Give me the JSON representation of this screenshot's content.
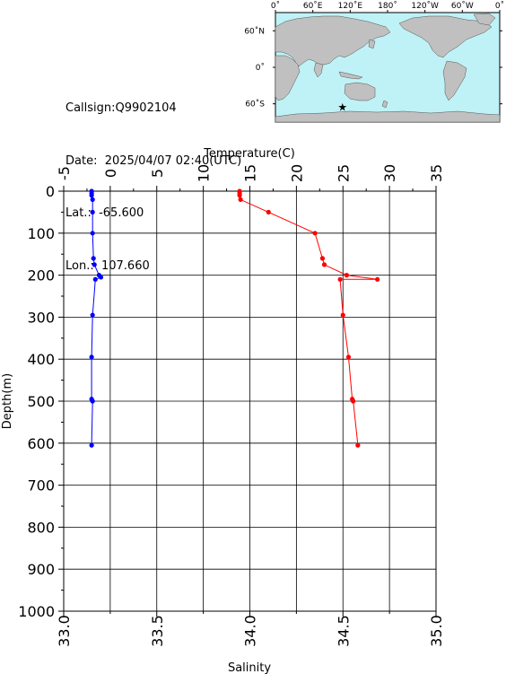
{
  "station": {
    "callsign": "Callsign:Q9902104",
    "date": "Date:  2025/04/07 02:40(UTC)",
    "lat": "Lat.:  -65.600",
    "lon": "Lon.:  107.660"
  },
  "map": {
    "lon_labels": [
      "0˚",
      "60˚E",
      "120˚E",
      "180˚",
      "120˚W",
      "60˚W",
      "0˚"
    ],
    "lat_labels": [
      "60˚N",
      "0˚",
      "60˚S"
    ],
    "station_marker": {
      "lon": 107.66,
      "lat": -65.6
    },
    "colors": {
      "ocean": "#bff2f6",
      "land": "#c0c0c0",
      "marker": "#ff0000"
    }
  },
  "chart_data": {
    "type": "line",
    "y_axis": {
      "label": "Depth(m)",
      "range": [
        0,
        1000
      ],
      "inverted": true,
      "ticks": [
        "0",
        "100",
        "200",
        "300",
        "400",
        "500",
        "600",
        "700",
        "800",
        "900",
        "1000"
      ]
    },
    "x_axis_top": {
      "label": "Temperature(C)",
      "range": [
        -5,
        35
      ],
      "ticks": [
        "-5",
        "0",
        "5",
        "10",
        "15",
        "20",
        "25",
        "30",
        "35"
      ]
    },
    "x_axis_bottom": {
      "label": "Salinity",
      "range": [
        33.0,
        35.0
      ],
      "ticks": [
        "33.0",
        "33.5",
        "34.0",
        "34.5",
        "35.0"
      ]
    },
    "grid": true,
    "series": [
      {
        "name": "Temperature",
        "axis": "top",
        "color": "#ff0000",
        "depth": [
          0,
          5,
          10,
          20,
          50,
          100,
          160,
          175,
          200,
          210,
          210,
          295,
          395,
          495,
          500,
          605
        ],
        "values": [
          13.9,
          13.9,
          13.9,
          14.0,
          17.0,
          22.0,
          22.8,
          23.0,
          25.4,
          28.7,
          24.7,
          25.0,
          25.6,
          26.0,
          26.1,
          26.6
        ]
      },
      {
        "name": "Salinity",
        "axis": "bottom",
        "color": "#0000ff",
        "depth": [
          0,
          5,
          10,
          20,
          50,
          100,
          160,
          175,
          200,
          205,
          210,
          295,
          395,
          495,
          500,
          605
        ],
        "values": [
          33.15,
          33.15,
          33.15,
          33.155,
          33.155,
          33.155,
          33.16,
          33.165,
          33.19,
          33.2,
          33.17,
          33.155,
          33.15,
          33.15,
          33.155,
          33.15
        ]
      }
    ]
  }
}
